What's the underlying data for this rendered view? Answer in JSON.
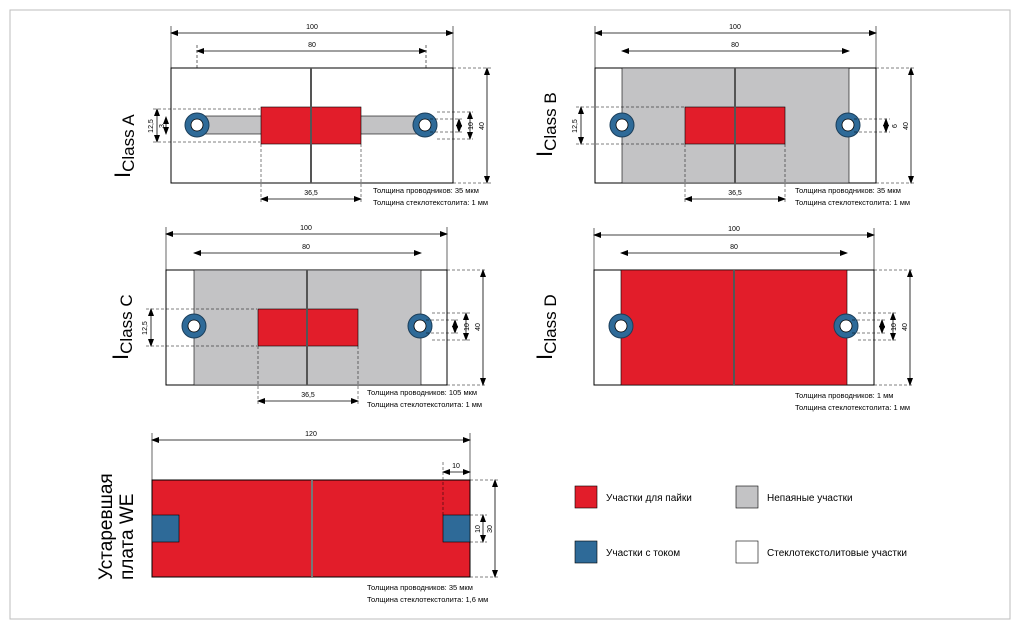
{
  "colors": {
    "solder": "#e21d2a",
    "nonsolder": "#c3c3c5",
    "current": "#2e6a98",
    "glass": "#ffffff",
    "line": "#000000"
  },
  "classA": {
    "title": "I",
    "sub": "Class A",
    "dim_total": "100",
    "dim_inner": "80",
    "dim_pad": "36,5",
    "dim_left": "12,5",
    "dim_left2": "3",
    "dim_r1": "6",
    "dim_r2": "10",
    "dim_r3": "40",
    "note1": "Толщина проводников: 35 мкм",
    "note2": "Толщина стеклотекстолита: 1 мм"
  },
  "classB": {
    "title": "I",
    "sub": "Class B",
    "dim_total": "100",
    "dim_inner": "80",
    "dim_pad": "36,5",
    "dim_left": "12,5",
    "dim_r1": "6",
    "dim_r3": "40",
    "note1": "Толщина проводников: 35 мкм",
    "note2": "Толщина стеклотекстолита: 1 мм"
  },
  "classC": {
    "title": "I",
    "sub": "Class C",
    "dim_total": "100",
    "dim_inner": "80",
    "dim_pad": "36,5",
    "dim_left": "12,5",
    "dim_r1": "6",
    "dim_r2": "10",
    "dim_r3": "40",
    "note1": "Толщина проводников: 105 мкм",
    "note2": "Толщина стеклотекстолита: 1 мм"
  },
  "classD": {
    "title": "I",
    "sub": "Class D",
    "dim_total": "100",
    "dim_inner": "80",
    "dim_r1": "6",
    "dim_r2": "10",
    "dim_r3": "40",
    "note1": "Толщина проводников: 1 мм",
    "note2": "Толщина стеклотекстолита: 1 мм"
  },
  "classWE": {
    "title1": "Устаревшая",
    "title2": "плата WE",
    "dim_total": "120",
    "dim_pad": "10",
    "dim_r1": "10",
    "dim_r2": "30",
    "note1": "Толщина проводников: 35 мкм",
    "note2": "Толщина стеклотекстолита: 1,6 мм"
  },
  "legend": {
    "solder": "Участки для пайки",
    "nonsolder": "Непаяные участки",
    "current": "Участки с током",
    "glass": "Стеклотекстолитовые участки"
  }
}
